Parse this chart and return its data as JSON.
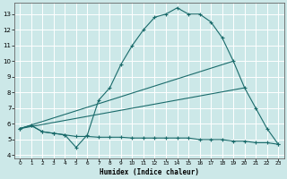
{
  "xlabel": "Humidex (Indice chaleur)",
  "bg_color": "#cce8e8",
  "grid_color": "#ffffff",
  "line_color": "#1a6b6b",
  "xlim": [
    -0.5,
    23.5
  ],
  "ylim": [
    3.8,
    13.7
  ],
  "xticks": [
    0,
    1,
    2,
    3,
    4,
    5,
    6,
    7,
    8,
    9,
    10,
    11,
    12,
    13,
    14,
    15,
    16,
    17,
    18,
    19,
    20,
    21,
    22,
    23
  ],
  "yticks": [
    4,
    5,
    6,
    7,
    8,
    9,
    10,
    11,
    12,
    13
  ],
  "series": [
    {
      "x": [
        0,
        1,
        2,
        3,
        4,
        5,
        6,
        7,
        8,
        9,
        10,
        11,
        12,
        13,
        14,
        15,
        16,
        17,
        18,
        19,
        20,
        21,
        22,
        23
      ],
      "y": [
        5.7,
        5.9,
        5.5,
        5.4,
        5.3,
        4.5,
        5.3,
        7.5,
        8.3,
        9.8,
        11.0,
        12.0,
        12.8,
        13.0,
        13.4,
        13.0,
        13.0,
        12.5,
        11.5,
        10.0,
        8.3,
        7.0,
        5.7,
        4.7
      ],
      "marker": true
    },
    {
      "x": [
        0,
        1,
        2,
        3,
        4,
        5,
        6,
        7,
        8,
        9,
        10,
        11,
        12,
        13,
        14,
        15,
        16,
        17,
        18,
        19,
        20,
        21,
        22,
        23
      ],
      "y": [
        5.7,
        5.9,
        5.5,
        5.4,
        5.3,
        5.2,
        5.2,
        5.15,
        5.15,
        5.15,
        5.1,
        5.1,
        5.1,
        5.1,
        5.1,
        5.1,
        5.0,
        5.0,
        5.0,
        4.9,
        4.9,
        4.8,
        4.8,
        4.7
      ],
      "marker": true
    },
    {
      "x": [
        0,
        19
      ],
      "y": [
        5.7,
        10.0
      ],
      "marker": false
    },
    {
      "x": [
        0,
        20
      ],
      "y": [
        5.7,
        8.3
      ],
      "marker": false
    }
  ]
}
